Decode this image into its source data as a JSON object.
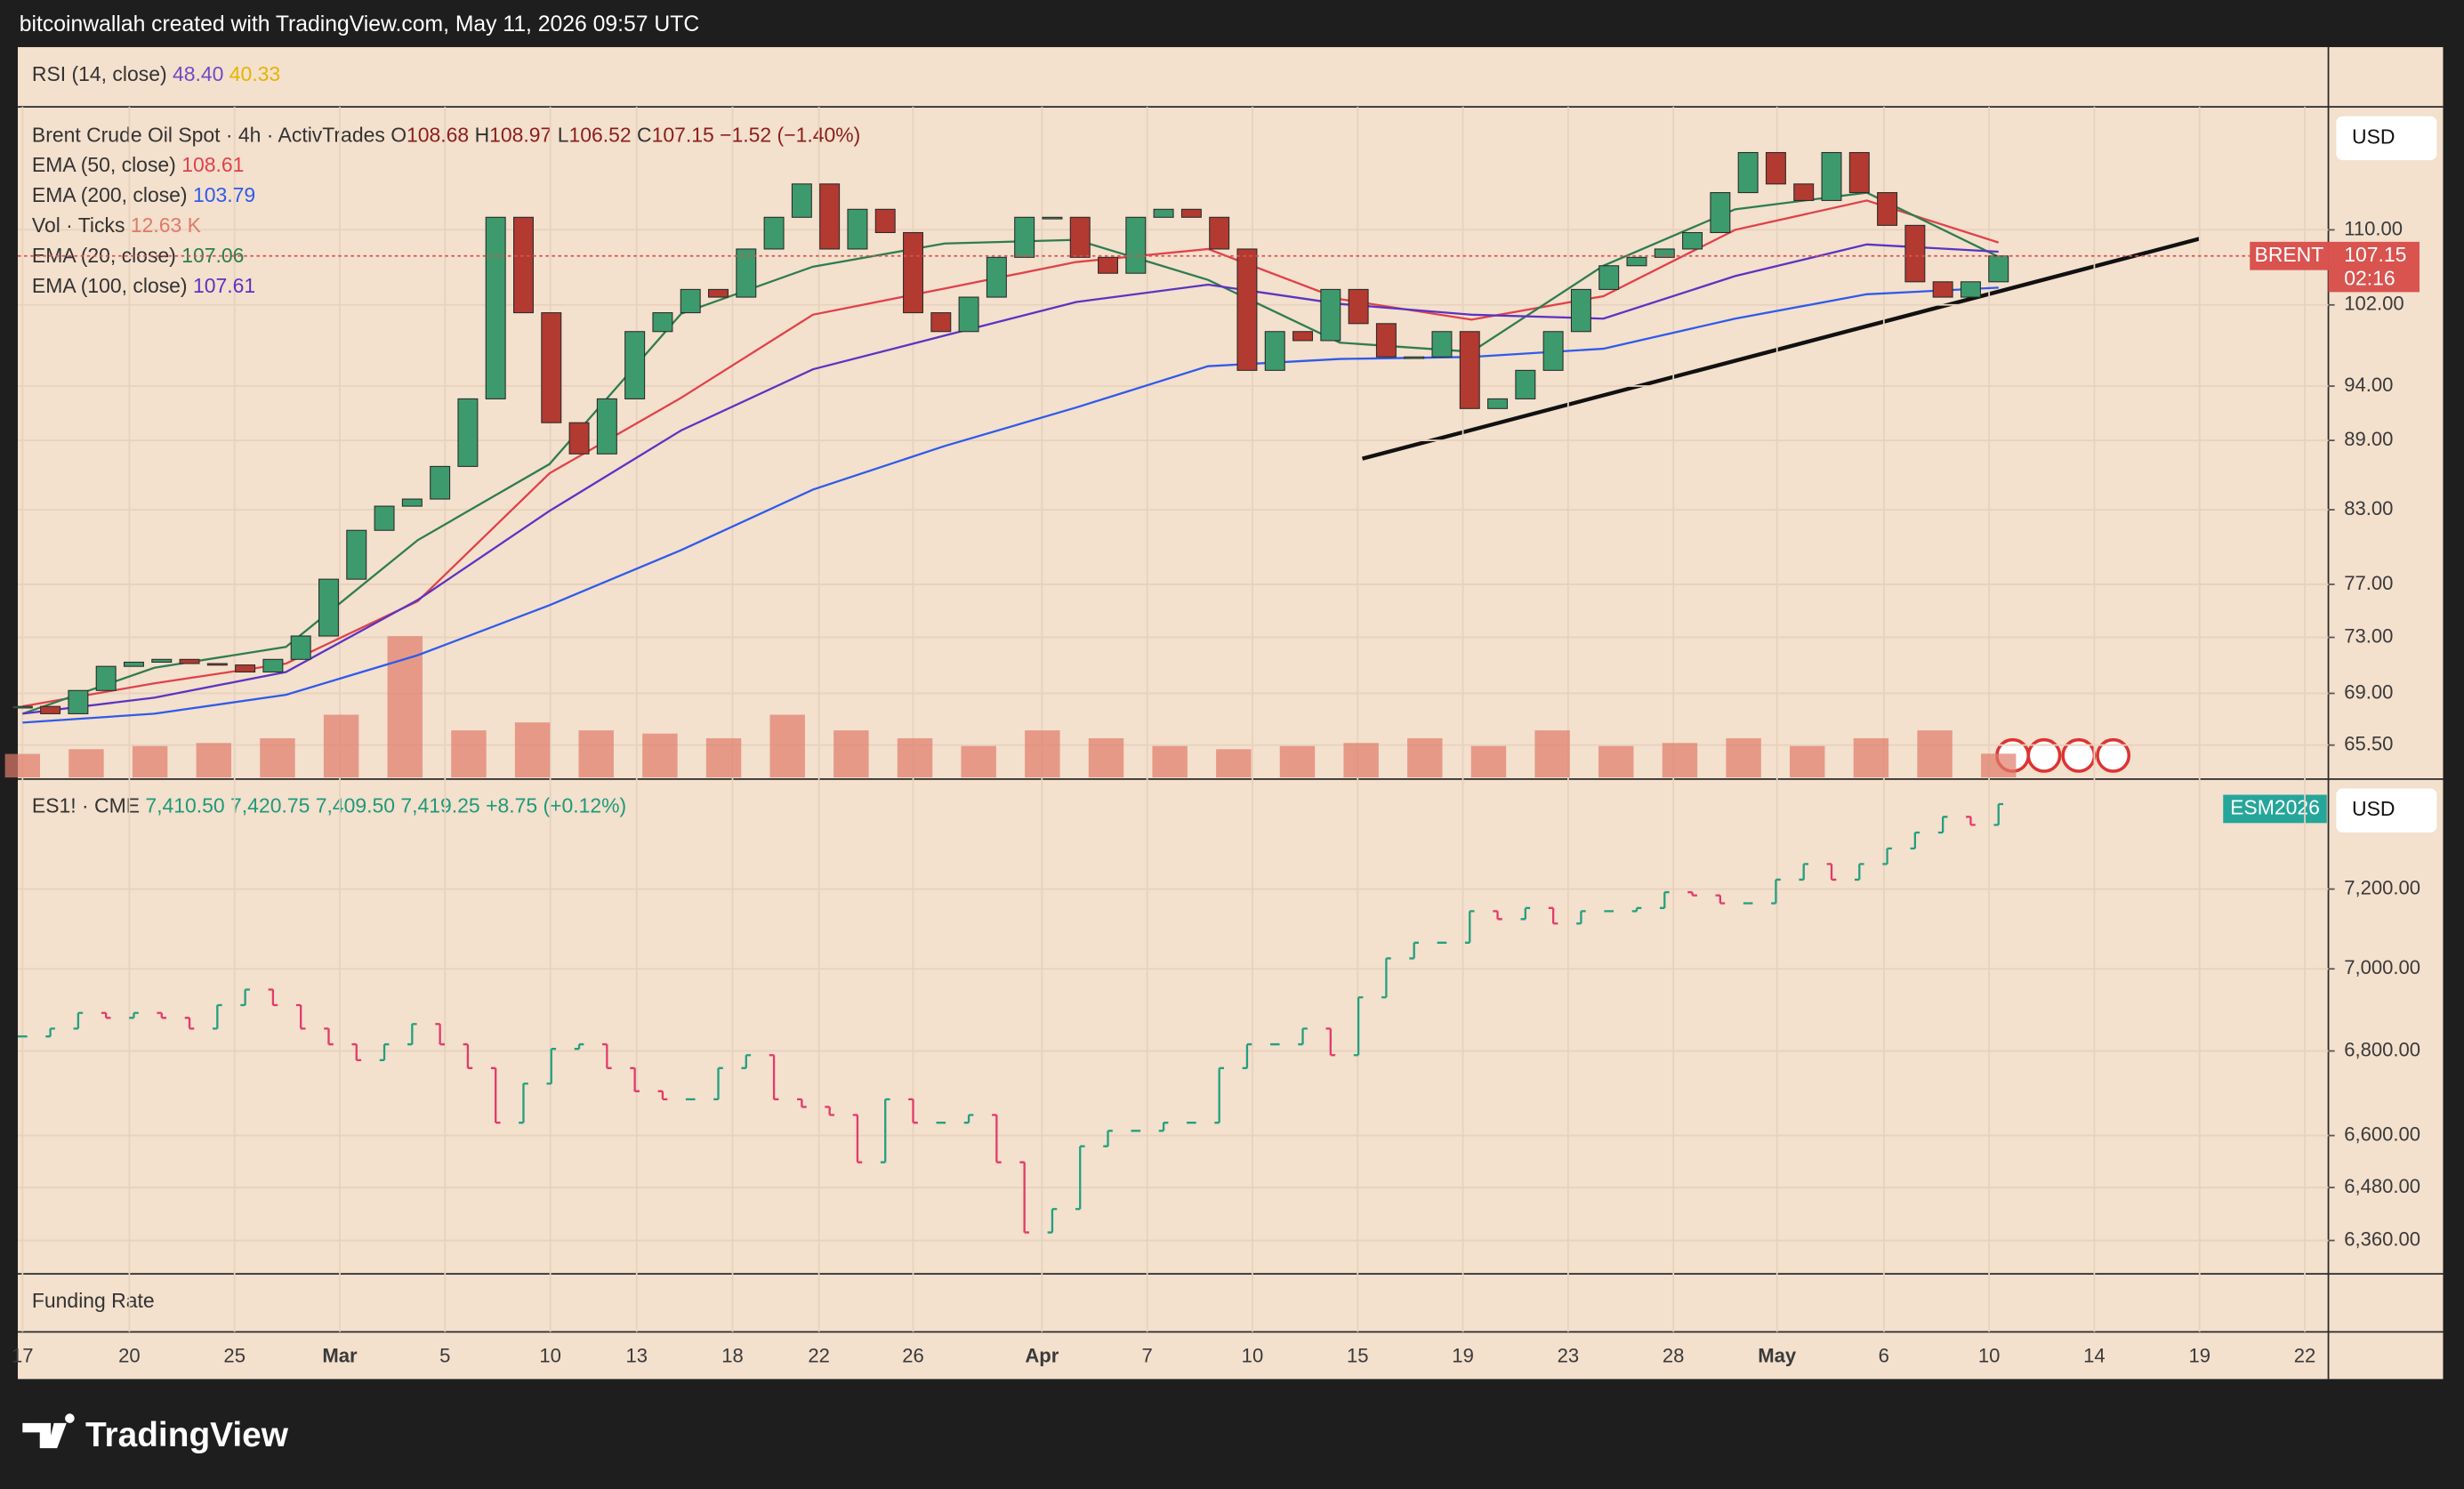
{
  "header": {
    "text": "bitcoinwallah created with TradingView.com, May 11, 2026 09:57 UTC"
  },
  "rsi_pane": {
    "title": "RSI (14, close)",
    "values": [
      "48.40",
      "40.33"
    ]
  },
  "funding_pane": {
    "title": "Funding Rate"
  },
  "time_axis": {
    "labels": [
      "17",
      "20",
      "25",
      "Mar",
      "5",
      "10",
      "13",
      "18",
      "22",
      "26",
      "Apr",
      "7",
      "10",
      "15",
      "19",
      "23",
      "28",
      "May",
      "6",
      "10",
      "14",
      "19",
      "22"
    ]
  },
  "footer": {
    "logo": "TradingView"
  },
  "chart_data": [
    {
      "type": "candlestick",
      "title": "Brent Crude Oil Spot · 4h · ActivTrades",
      "ohlc": [
        {
          "label": "O",
          "value": 108.68
        },
        {
          "label": "H",
          "value": 108.97
        },
        {
          "label": "L",
          "value": 106.52
        }
      ],
      "close_label": "C",
      "change": "−1.52 (−1.40%)",
      "up_color": "#3d9a6c",
      "down_color": "#b23a30",
      "log_scale": true,
      "ylim": [
        63.4,
        124.5
      ],
      "yticks": [
        {
          "value": 110,
          "label": "110.00"
        },
        {
          "value": 102,
          "label": "102.00"
        },
        {
          "value": 94,
          "label": "94.00"
        },
        {
          "value": 89,
          "label": "89.00"
        },
        {
          "value": 83,
          "label": "83.00"
        },
        {
          "value": 77,
          "label": "77.00"
        },
        {
          "value": 73,
          "label": "73.00"
        },
        {
          "value": 69,
          "label": "69.00"
        },
        {
          "value": 65.5,
          "label": "65.50"
        }
      ],
      "currency": "USD",
      "symbol_tag": "BRENT",
      "countdown": "02:16",
      "price_line_color": "#d9534f",
      "values": [
        68.1,
        67.6,
        69.2,
        70.9,
        71.2,
        71.4,
        71.1,
        71.0,
        70.5,
        71.4,
        73.1,
        77.4,
        81.3,
        83.3,
        83.9,
        86.7,
        92.8,
        111.4,
        101.2,
        90.6,
        87.8,
        92.8,
        99.3,
        101.2,
        103.6,
        102.8,
        107.9,
        111.4,
        115.2,
        107.9,
        112.3,
        109.7,
        101.2,
        99.3,
        102.8,
        107.0,
        111.4,
        111.4,
        107.0,
        105.3,
        111.4,
        112.3,
        111.4,
        107.9,
        95.5,
        99.3,
        98.4,
        103.6,
        100.1,
        96.8,
        96.8,
        99.3,
        91.9,
        92.8,
        95.5,
        99.3,
        103.6,
        106.1,
        107.0,
        107.9,
        109.7,
        114.2,
        118.9,
        115.2,
        113.3,
        118.9,
        114.2,
        110.5,
        104.4,
        102.8,
        104.4,
        107.15
      ],
      "series": [
        {
          "name": "EMA (50, close)",
          "color": "#e0424a",
          "values": [
            68.1,
            69.7,
            71.1,
            75.7,
            86.1,
            92.9,
            101.0,
            103.7,
            106.5,
            107.9,
            102.6,
            100.5,
            102.9,
            110.0,
            113.3,
            108.61
          ]
        },
        {
          "name": "EMA (200, close)",
          "color": "#2f5bea",
          "values": [
            67.0,
            67.6,
            68.9,
            71.7,
            75.4,
            79.7,
            84.7,
            88.5,
            92.0,
            95.9,
            96.6,
            96.8,
            97.6,
            100.6,
            103.1,
            103.79
          ]
        },
        {
          "name": "Vol · Ticks",
          "kind": "volume",
          "color": "#e07a6a",
          "legend_value": "12.63 K",
          "values": [
            12.5,
            15,
            16.7,
            18.3,
            20.8,
            33.3,
            75,
            25,
            29.2,
            25,
            23.3,
            20.8,
            33.3,
            25,
            20.8,
            16.7,
            25,
            20.8,
            16.7,
            15,
            16.7,
            18.3,
            20.8,
            16.7,
            25,
            16.7,
            18.3,
            20.8,
            16.7,
            20.8,
            25,
            12.63
          ]
        },
        {
          "name": "EMA (20, close)",
          "color": "#2e7d4f",
          "values": [
            67.6,
            70.8,
            72.3,
            80.5,
            86.9,
            101.1,
            106.0,
            108.5,
            108.9,
            104.6,
            98.2,
            97.3,
            106.1,
            112.3,
            114.2,
            107.06
          ]
        },
        {
          "name": "EMA (100, close)",
          "color": "#5b34c2",
          "values": [
            67.6,
            68.7,
            70.5,
            75.8,
            82.9,
            89.9,
            95.6,
            98.9,
            102.3,
            104.1,
            102.1,
            101.0,
            100.6,
            105.0,
            108.4,
            107.61
          ]
        }
      ]
    },
    {
      "type": "ohlc",
      "title": "ES1! · CME",
      "ohlc_labels": [
        "7,410.50",
        "7,420.75",
        "7,409.50",
        "7,419.25"
      ],
      "change": "+8.75 (+0.12%)",
      "up_color": "#22a07f",
      "down_color": "#e23a6a",
      "color": "#22a07f",
      "log_scale": true,
      "ylim": [
        6289,
        7481
      ],
      "yticks": [
        {
          "value": 7200,
          "label": "7,200.00"
        },
        {
          "value": 7000,
          "label": "7,000.00"
        },
        {
          "value": 6800,
          "label": "6,800.00"
        },
        {
          "value": 6600,
          "label": "6,600.00"
        },
        {
          "value": 6480,
          "label": "6,480.00"
        },
        {
          "value": 6360,
          "label": "6,360.00"
        }
      ],
      "currency": "USD",
      "symbol_tag": "ESM2026",
      "values": [
        6835,
        6854,
        6892,
        6880,
        6892,
        6880,
        6854,
        6911,
        6949,
        6911,
        6854,
        6816,
        6778,
        6816,
        6865,
        6816,
        6759,
        6630,
        6722,
        6805,
        6816,
        6759,
        6704,
        6685,
        6685,
        6759,
        6790,
        6685,
        6667,
        6648,
        6538,
        6685,
        6630,
        6630,
        6648,
        6538,
        6378,
        6431,
        6575,
        6611,
        6611,
        6630,
        6630,
        6759,
        6816,
        6816,
        6854,
        6790,
        6930,
        7026,
        7065,
        7065,
        7144,
        7124,
        7152,
        7113,
        7144,
        7144,
        7152,
        7192,
        7184,
        7164,
        7164,
        7224,
        7264,
        7224,
        7264,
        7304,
        7345,
        7386,
        7365,
        7419.25
      ]
    }
  ]
}
